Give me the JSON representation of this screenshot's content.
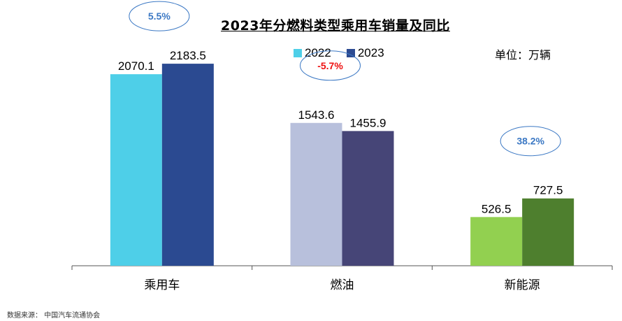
{
  "chart_data": {
    "type": "bar",
    "title": "2023年分燃料类型乘用车销量及同比",
    "unit": "单位：万辆",
    "source": "数据来源：  中国汽车流通协会",
    "categories": [
      "乘用车",
      "燃油",
      "新能源"
    ],
    "series": [
      {
        "name": "2022",
        "values": [
          2070.1,
          1543.6,
          526.5
        ],
        "value_labels": [
          "2070.1",
          "1543.6",
          "526.5"
        ],
        "colors": [
          "#4ecfe8",
          "#b8c0dc",
          "#92d050"
        ]
      },
      {
        "name": "2023",
        "values": [
          2183.5,
          1455.9,
          727.5
        ],
        "value_labels": [
          "2183.5",
          "1455.9",
          "727.5"
        ],
        "colors": [
          "#2b4a91",
          "#464577",
          "#4e7f2e"
        ]
      }
    ],
    "yoy_growth": [
      {
        "category": "乘用车",
        "label": "5.5%",
        "color": "#3b78c4"
      },
      {
        "category": "燃油",
        "label": "-5.7%",
        "color": "#ee1111"
      },
      {
        "category": "新能源",
        "label": "38.2%",
        "color": "#3b78c4"
      }
    ],
    "legend": {
      "placement": "top-center",
      "entries": [
        {
          "label": "2022",
          "color": "#4ecfe8"
        },
        {
          "label": "2023",
          "color": "#2b4a91"
        }
      ]
    },
    "ylim": [
      0,
      2600
    ],
    "grid": false,
    "xlabel": "",
    "ylabel": ""
  }
}
